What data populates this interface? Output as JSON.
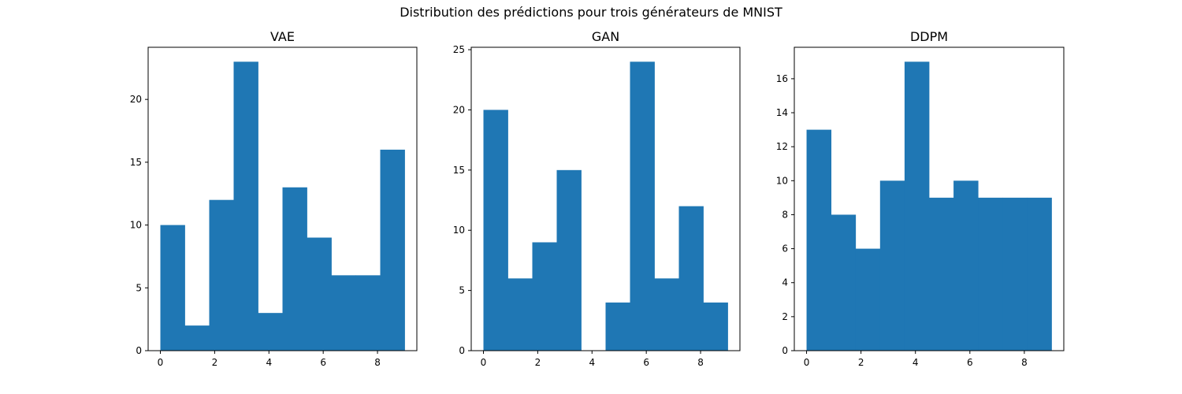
{
  "figure": {
    "suptitle": "Distribution des prédictions pour trois générateurs de MNIST"
  },
  "chart_data": [
    {
      "type": "bar",
      "title": "VAE",
      "xlabel": "",
      "ylabel": "",
      "bin_edges": [
        0,
        0.9,
        1.8,
        2.7,
        3.6,
        4.5,
        5.4,
        6.3,
        7.2,
        8.1,
        9
      ],
      "values": [
        10,
        2,
        12,
        23,
        3,
        13,
        9,
        6,
        6,
        16
      ],
      "xlim": [
        -0.45,
        9.45
      ],
      "ylim": [
        0,
        24.15
      ],
      "xticks": [
        0,
        2,
        4,
        6,
        8
      ],
      "yticks": [
        0,
        5,
        10,
        15,
        20
      ],
      "color": "#1f77b4"
    },
    {
      "type": "bar",
      "title": "GAN",
      "xlabel": "",
      "ylabel": "",
      "bin_edges": [
        0,
        0.9,
        1.8,
        2.7,
        3.6,
        4.5,
        5.4,
        6.3,
        7.2,
        8.1,
        9
      ],
      "values": [
        20,
        6,
        9,
        15,
        0,
        4,
        24,
        6,
        12,
        4
      ],
      "xlim": [
        -0.45,
        9.45
      ],
      "ylim": [
        0,
        25.2
      ],
      "xticks": [
        0,
        2,
        4,
        6,
        8
      ],
      "yticks": [
        0,
        5,
        10,
        15,
        20,
        25
      ],
      "color": "#1f77b4"
    },
    {
      "type": "bar",
      "title": "DDPM",
      "xlabel": "",
      "ylabel": "",
      "bin_edges": [
        0,
        0.9,
        1.8,
        2.7,
        3.6,
        4.5,
        5.4,
        6.3,
        7.2,
        8.1,
        9
      ],
      "values": [
        13,
        8,
        6,
        10,
        17,
        9,
        10,
        9,
        9,
        9
      ],
      "xlim": [
        -0.45,
        9.45
      ],
      "ylim": [
        0,
        17.85
      ],
      "xticks": [
        0,
        2,
        4,
        6,
        8
      ],
      "yticks": [
        0,
        2,
        4,
        6,
        8,
        10,
        12,
        14,
        16
      ],
      "color": "#1f77b4"
    }
  ]
}
